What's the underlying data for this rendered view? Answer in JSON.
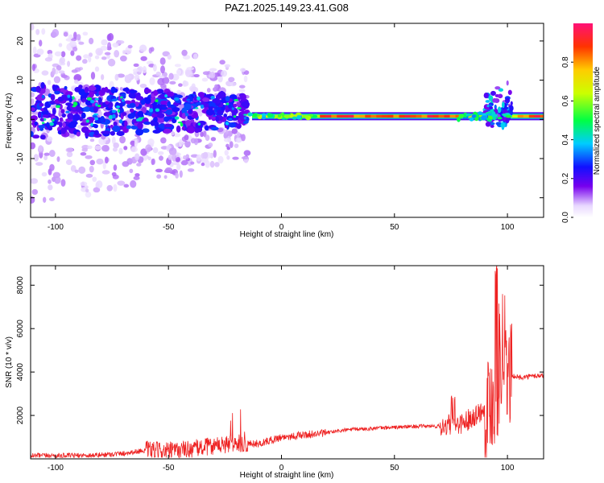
{
  "figure": {
    "title": "PAZ1.2025.149.23.41.G08"
  },
  "chart_data": [
    {
      "type": "heatmap",
      "xlabel": "Height of straight line (km)",
      "ylabel": "Frequency (Hz)",
      "xlim": [
        -111,
        116
      ],
      "ylim": [
        -25,
        24.5
      ],
      "x_ticks": [
        -100,
        -50,
        0,
        50,
        100
      ],
      "y_ticks": [
        -20,
        -10,
        0,
        10,
        20
      ],
      "colorbar": {
        "label": "Normalized spectral amplitude",
        "range": [
          0,
          1
        ],
        "ticks": [
          0.0,
          0.2,
          0.4,
          0.6,
          0.8
        ],
        "tick_labels": [
          "0.0",
          "0.2",
          "0.4",
          "0.6",
          "0.8"
        ]
      },
      "dominant_line": {
        "start_height_km": -13,
        "end_height_km": 116,
        "frequency_hz": 0.8,
        "amplitude": 0.95
      },
      "noise_region_height_km": [
        -111,
        -15
      ],
      "burst_height_km": [
        90,
        102
      ],
      "grid": false
    },
    {
      "type": "line",
      "xlabel": "Height of straight line (km)",
      "ylabel": "SNR (10 * v/v)",
      "xlim": [
        -111,
        116
      ],
      "ylim": [
        0,
        8900
      ],
      "x_ticks": [
        -100,
        -50,
        0,
        50,
        100
      ],
      "y_ticks": [
        2000,
        4000,
        6000,
        8000
      ],
      "series": [
        {
          "color": "#ee2222",
          "x": [
            -111,
            -100,
            -90,
            -80,
            -70,
            -60,
            -50,
            -40,
            -30,
            -20,
            -10,
            0,
            10,
            20,
            30,
            40,
            50,
            60,
            70,
            80,
            90,
            95,
            100,
            105,
            110,
            116
          ],
          "y": [
            150,
            150,
            150,
            180,
            250,
            400,
            350,
            450,
            600,
            700,
            700,
            1000,
            1100,
            1200,
            1350,
            1400,
            1450,
            1500,
            1500,
            1650,
            2300,
            3000,
            3900,
            3750,
            3800,
            3850
          ]
        }
      ],
      "grid": false
    }
  ]
}
